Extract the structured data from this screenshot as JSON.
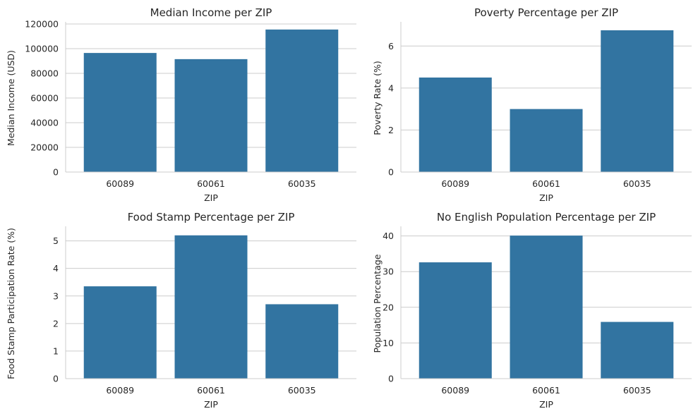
{
  "chart_data": [
    {
      "type": "bar",
      "title": "Median Income per ZIP",
      "xlabel": "ZIP",
      "ylabel": "Median Income (USD)",
      "categories": [
        "60089",
        "60061",
        "60035"
      ],
      "values": [
        96500,
        91500,
        115500
      ],
      "ylim": [
        0,
        120000
      ],
      "yticks": [
        0,
        20000,
        40000,
        60000,
        80000,
        100000,
        120000
      ],
      "ytick_labels": [
        "0",
        "20000",
        "40000",
        "60000",
        "80000",
        "100000",
        "120000"
      ],
      "grid": "horizontal",
      "color": "#3274a1"
    },
    {
      "type": "bar",
      "title": "Poverty Percentage per ZIP",
      "xlabel": "ZIP",
      "ylabel": "Poverty Rate (%)",
      "categories": [
        "60089",
        "60061",
        "60035"
      ],
      "values": [
        4.5,
        3.0,
        6.75
      ],
      "ylim": [
        0,
        7.05
      ],
      "yticks": [
        0,
        2,
        4,
        6
      ],
      "ytick_labels": [
        "0",
        "2",
        "4",
        "6"
      ],
      "grid": "horizontal",
      "color": "#3274a1"
    },
    {
      "type": "bar",
      "title": "Food Stamp Percentage per ZIP",
      "xlabel": "ZIP",
      "ylabel": "Food Stamp Participation Rate (%)",
      "categories": [
        "60089",
        "60061",
        "60035"
      ],
      "values": [
        3.35,
        5.2,
        2.7
      ],
      "ylim": [
        0,
        5.45
      ],
      "yticks": [
        0,
        1,
        2,
        3,
        4,
        5
      ],
      "ytick_labels": [
        "0",
        "1",
        "2",
        "3",
        "4",
        "5"
      ],
      "grid": "horizontal",
      "color": "#3274a1"
    },
    {
      "type": "bar",
      "title": "No English Population Percentage per ZIP",
      "xlabel": "ZIP",
      "ylabel": "Population Percentage",
      "categories": [
        "60089",
        "60061",
        "60035"
      ],
      "values": [
        32.6,
        40.1,
        15.9
      ],
      "ylim": [
        0,
        42.1
      ],
      "yticks": [
        0,
        10,
        20,
        30,
        40
      ],
      "ytick_labels": [
        "0",
        "10",
        "20",
        "30",
        "40"
      ],
      "grid": "horizontal",
      "color": "#3274a1"
    }
  ]
}
